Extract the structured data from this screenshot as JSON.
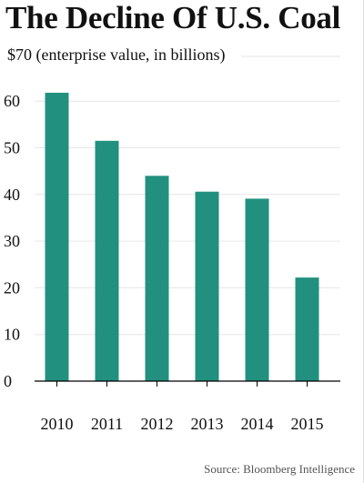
{
  "title": "The Decline Of U.S. Coal",
  "subtitle": "$70 (enterprise value, in billions)",
  "source": "Source: Bloomberg Intelligence",
  "colors": {
    "bar": "#22907f",
    "grid": "#e6e6e6",
    "axis": "#000000"
  },
  "chart_data": {
    "type": "bar",
    "categories": [
      "2010",
      "2011",
      "2012",
      "2013",
      "2014",
      "2015"
    ],
    "values": [
      61.8,
      51.5,
      44.0,
      40.6,
      39.1,
      22.2
    ],
    "ylim": [
      0,
      70
    ],
    "yticks": [
      "0",
      "10",
      "20",
      "30",
      "40",
      "50",
      "60"
    ],
    "ytick_values": [
      0,
      10,
      20,
      30,
      40,
      50,
      60
    ],
    "grid": true
  }
}
